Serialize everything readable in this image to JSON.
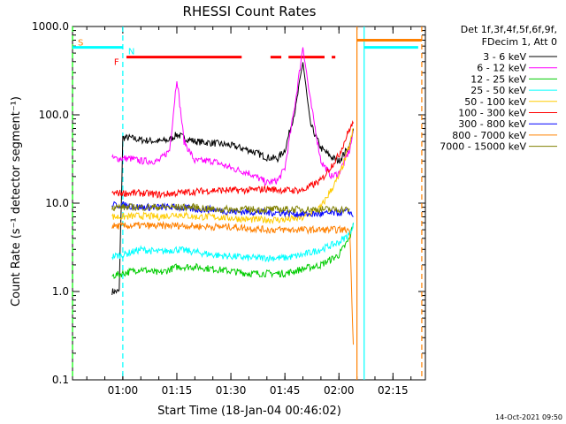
{
  "chart_data": {
    "type": "line",
    "title": "RHESSI Count Rates",
    "xlabel": "Start Time (18-Jan-04 00:46:02)",
    "ylabel": "Count Rate (s⁻¹ detector segment⁻¹)",
    "y_scale": "log",
    "ylim": [
      0.1,
      1000.0
    ],
    "xlim": [
      "00:46:02",
      "02:24:00"
    ],
    "x_ticks": [
      "01:00",
      "01:15",
      "01:30",
      "01:45",
      "02:00",
      "02:15"
    ],
    "y_ticks": [
      "0.1",
      "1.0",
      "10.0",
      "100.0",
      "1000.0"
    ],
    "legend_position": "right",
    "legend_header": [
      "Det 1f,3f,4f,5f,6f,9f,",
      "FDecim 1, Att 0"
    ],
    "series": [
      {
        "name": "3 - 6 keV",
        "color": "#000000",
        "x": [
          "00:57",
          "00:59",
          "01:00",
          "01:02",
          "01:05",
          "01:10",
          "01:13",
          "01:15",
          "01:17",
          "01:20",
          "01:25",
          "01:30",
          "01:35",
          "01:40",
          "01:43",
          "01:45",
          "01:48",
          "01:50",
          "01:52",
          "01:55",
          "01:58",
          "02:00",
          "02:03",
          "02:04"
        ],
        "y": [
          1.0,
          1.0,
          55,
          55,
          52,
          50,
          52,
          60,
          55,
          50,
          48,
          45,
          40,
          33,
          32,
          40,
          120,
          400,
          80,
          42,
          33,
          30,
          45,
          70
        ]
      },
      {
        "name": "6 - 12 keV",
        "color": "#ff00ff",
        "x": [
          "00:57",
          "01:00",
          "01:02",
          "01:05",
          "01:10",
          "01:13",
          "01:15",
          "01:17",
          "01:20",
          "01:25",
          "01:30",
          "01:35",
          "01:40",
          "01:43",
          "01:45",
          "01:48",
          "01:50",
          "01:52",
          "01:55",
          "01:58",
          "02:00",
          "02:03",
          "02:04"
        ],
        "y": [
          32,
          32,
          32,
          30,
          30,
          40,
          260,
          50,
          30,
          30,
          25,
          22,
          17,
          18,
          25,
          150,
          600,
          150,
          30,
          20,
          22,
          40,
          65
        ]
      },
      {
        "name": "12 - 25 keV",
        "color": "#00cc00",
        "x": [
          "00:57",
          "01:00",
          "01:05",
          "01:10",
          "01:15",
          "01:20",
          "01:25",
          "01:30",
          "01:35",
          "01:40",
          "01:45",
          "01:50",
          "01:55",
          "02:00",
          "02:03",
          "02:04"
        ],
        "y": [
          1.5,
          1.6,
          1.8,
          1.6,
          1.9,
          1.9,
          1.8,
          1.7,
          1.6,
          1.6,
          1.6,
          1.8,
          2.0,
          2.6,
          4.0,
          6.0
        ]
      },
      {
        "name": "25 - 50 keV",
        "color": "#00ffff",
        "x": [
          "00:57",
          "01:00",
          "01:05",
          "01:10",
          "01:15",
          "01:20",
          "01:25",
          "01:30",
          "01:35",
          "01:40",
          "01:45",
          "01:50",
          "01:55",
          "02:00",
          "02:03",
          "02:04"
        ],
        "y": [
          2.5,
          2.6,
          3.0,
          2.8,
          3.0,
          2.8,
          2.6,
          2.5,
          2.4,
          2.4,
          2.4,
          2.6,
          3.0,
          3.6,
          4.5,
          6.0
        ]
      },
      {
        "name": "50 - 100 keV",
        "color": "#ffcc00",
        "x": [
          "00:57",
          "01:00",
          "01:05",
          "01:10",
          "01:15",
          "01:20",
          "01:25",
          "01:30",
          "01:35",
          "01:40",
          "01:45",
          "01:50",
          "01:55",
          "02:00",
          "02:03",
          "02:04"
        ],
        "y": [
          7.0,
          7.0,
          7.2,
          7.0,
          7.5,
          7.0,
          7.0,
          6.8,
          6.5,
          6.5,
          6.5,
          6.8,
          9.0,
          20,
          45,
          70
        ]
      },
      {
        "name": "100 - 300 keV",
        "color": "#ff0000",
        "x": [
          "00:57",
          "01:00",
          "01:05",
          "01:10",
          "01:15",
          "01:20",
          "01:25",
          "01:30",
          "01:35",
          "01:40",
          "01:45",
          "01:50",
          "01:55",
          "02:00",
          "02:03",
          "02:04"
        ],
        "y": [
          13,
          13,
          13,
          12.5,
          13,
          13.5,
          14,
          14,
          14,
          14.5,
          14,
          14,
          18,
          35,
          70,
          80
        ]
      },
      {
        "name": "300 - 800 keV",
        "color": "#0000ff",
        "x": [
          "00:57",
          "01:00",
          "01:05",
          "01:10",
          "01:15",
          "01:20",
          "01:25",
          "01:30",
          "01:35",
          "01:40",
          "01:45",
          "01:50",
          "01:55",
          "02:00",
          "02:03",
          "02:04"
        ],
        "y": [
          9.5,
          9.5,
          9.0,
          9.0,
          9.0,
          8.5,
          8.5,
          8.0,
          8.0,
          7.8,
          7.8,
          7.5,
          7.5,
          7.8,
          8.0,
          7.0
        ]
      },
      {
        "name": "800 - 7000 keV",
        "color": "#ff8000",
        "x": [
          "00:57",
          "01:00",
          "01:05",
          "01:10",
          "01:15",
          "01:20",
          "01:25",
          "01:30",
          "01:35",
          "01:40",
          "01:45",
          "01:50",
          "01:55",
          "02:00",
          "02:03",
          "02:04"
        ],
        "y": [
          5.5,
          5.5,
          5.6,
          5.5,
          5.6,
          5.5,
          5.4,
          5.4,
          5.2,
          5.0,
          5.0,
          5.0,
          5.0,
          5.0,
          5.0,
          0.25
        ]
      },
      {
        "name": "7000 - 15000 keV",
        "color": "#808000",
        "x": [
          "00:57",
          "01:00",
          "01:05",
          "01:10",
          "01:15",
          "01:20",
          "01:25",
          "01:30",
          "01:35",
          "01:40",
          "01:45",
          "01:50",
          "01:55",
          "02:00",
          "02:03"
        ],
        "y": [
          9,
          9,
          9,
          9,
          9,
          9,
          8.5,
          8.5,
          8.5,
          8.5,
          8.5,
          8.5,
          8.5,
          8.5,
          8.5
        ]
      }
    ],
    "annotations": [
      {
        "text": "S",
        "color": "#ff8000",
        "x": "00:46:02"
      },
      {
        "text": "N",
        "color": "#00ffff",
        "x": "01:00"
      },
      {
        "text": "F",
        "color": "#ff0000",
        "x": "01:00"
      }
    ],
    "bands": [
      {
        "color": "#00ffff",
        "from": "00:46:02",
        "to": "01:00",
        "level": 580
      },
      {
        "color": "#00ffff",
        "from": "02:07",
        "to": "02:22",
        "level": 580
      },
      {
        "color": "#ff8000",
        "from": "02:05",
        "to": "02:23",
        "level": 700
      }
    ],
    "flare_flags": [
      {
        "from": "01:01",
        "to": "01:33"
      },
      {
        "from": "01:41",
        "to": "01:44"
      },
      {
        "from": "01:46",
        "to": "01:56"
      },
      {
        "from": "01:58",
        "to": "01:59"
      }
    ],
    "vlines": [
      {
        "color": "#00ffff",
        "x": "01:00",
        "style": "dashed"
      },
      {
        "color": "#00ff00",
        "x": "00:46:02",
        "style": "dashed"
      },
      {
        "color": "#ff8000",
        "x": "02:05",
        "style": "solid"
      },
      {
        "color": "#00ffff",
        "x": "02:07",
        "style": "solid"
      },
      {
        "color": "#ff8000",
        "x": "02:23",
        "style": "dashed"
      }
    ]
  },
  "footer_timestamp": "14-Oct-2021 09:50"
}
